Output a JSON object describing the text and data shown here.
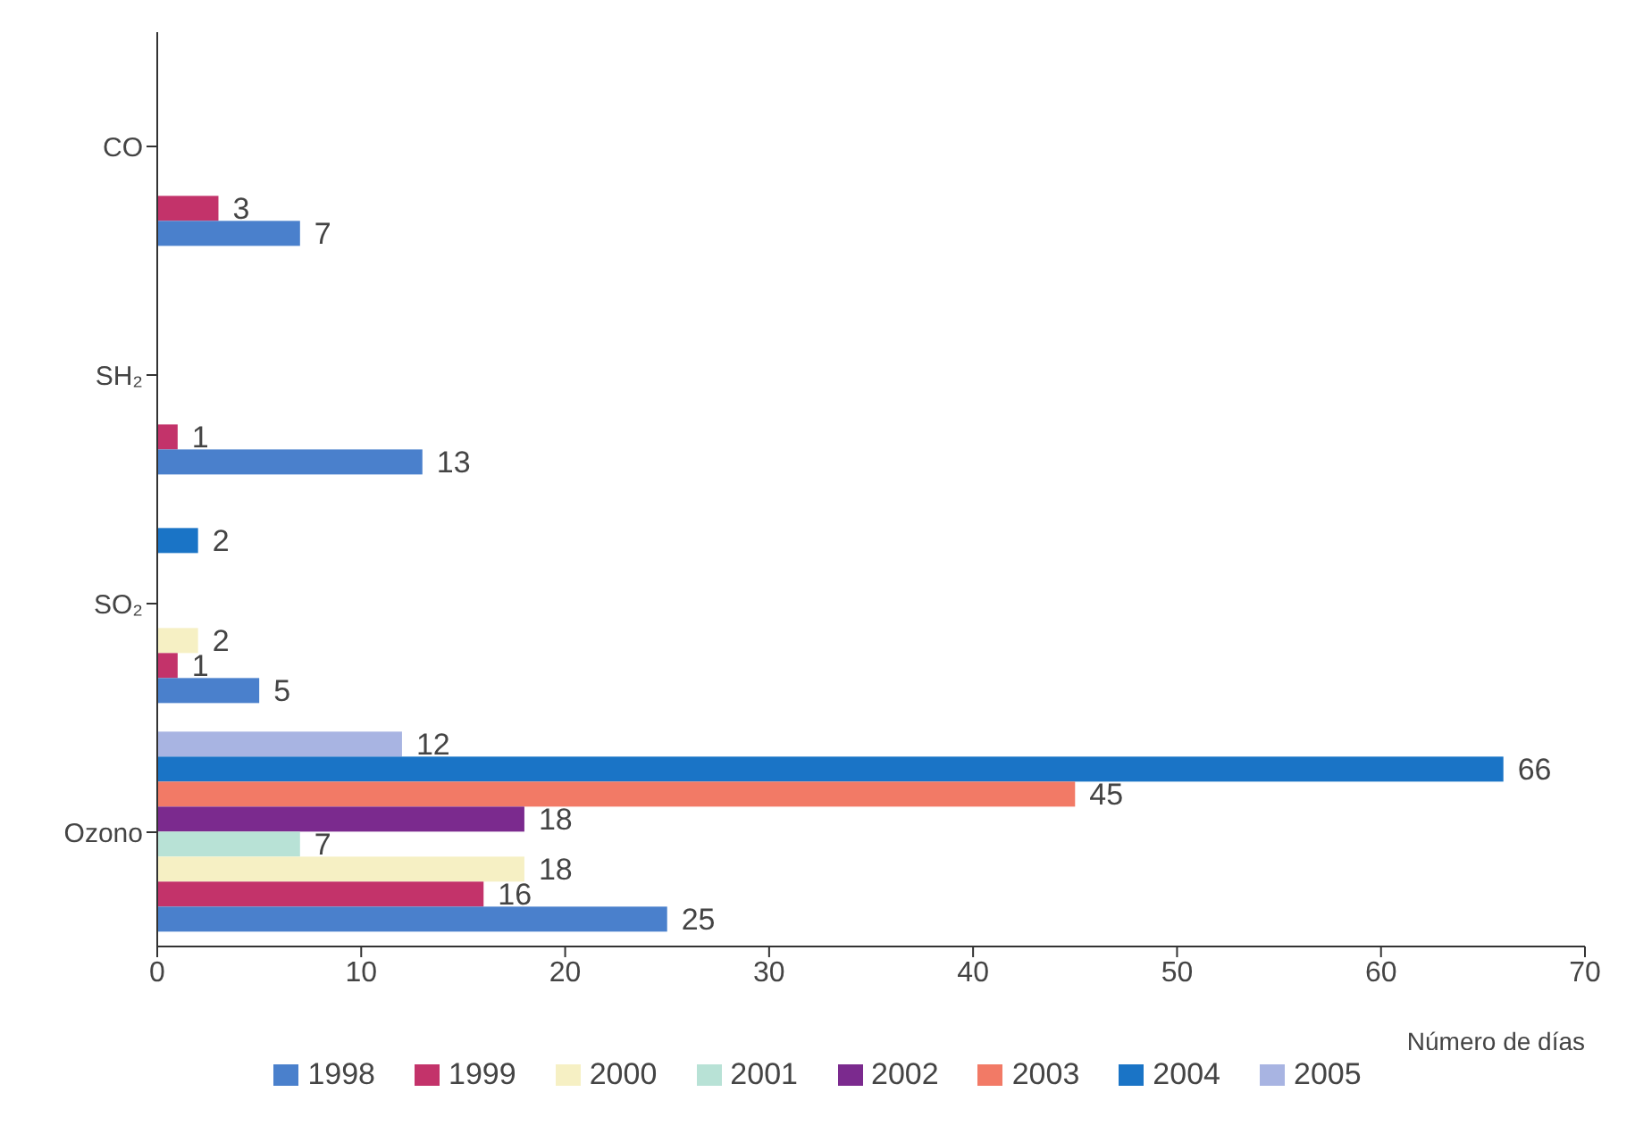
{
  "chart_data": {
    "type": "bar",
    "orientation": "horizontal",
    "categories": [
      "CO",
      "SH₂",
      "SO₂",
      "Ozono"
    ],
    "series": [
      {
        "name": "1998",
        "color": "#4a80cc",
        "values": [
          7,
          13,
          5,
          25
        ],
        "value_labels": [
          "7",
          "13",
          "5",
          "25"
        ]
      },
      {
        "name": "1999",
        "color": "#c3336a",
        "values": [
          3,
          1,
          1,
          16
        ],
        "value_labels": [
          "3",
          "1",
          "1",
          "16"
        ]
      },
      {
        "name": "2000",
        "color": "#f6f0c4",
        "values": [
          0,
          0,
          2,
          18
        ],
        "value_labels": [
          null,
          null,
          "2",
          "18"
        ]
      },
      {
        "name": "2001",
        "color": "#b8e2d6",
        "values": [
          0,
          0,
          0,
          7
        ],
        "value_labels": [
          null,
          null,
          null,
          "7"
        ]
      },
      {
        "name": "2002",
        "color": "#7b2a8e",
        "values": [
          0,
          0,
          0,
          18
        ],
        "value_labels": [
          null,
          null,
          null,
          "18"
        ]
      },
      {
        "name": "2003",
        "color": "#f27a66",
        "values": [
          0,
          0,
          0,
          45
        ],
        "value_labels": [
          null,
          null,
          null,
          "45"
        ]
      },
      {
        "name": "2004",
        "color": "#1a74c6",
        "values": [
          0,
          0,
          2,
          66
        ],
        "value_labels": [
          null,
          null,
          "2",
          "66"
        ]
      },
      {
        "name": "2005",
        "color": "#a8b4e2",
        "values": [
          0,
          0,
          0,
          12
        ],
        "value_labels": [
          null,
          null,
          null,
          "12"
        ]
      }
    ],
    "xlabel": "Número de días",
    "xlim": [
      0,
      70
    ],
    "xticks": [
      0,
      10,
      20,
      30,
      40,
      50,
      60,
      70
    ],
    "grid": false,
    "legend": "bottom"
  }
}
